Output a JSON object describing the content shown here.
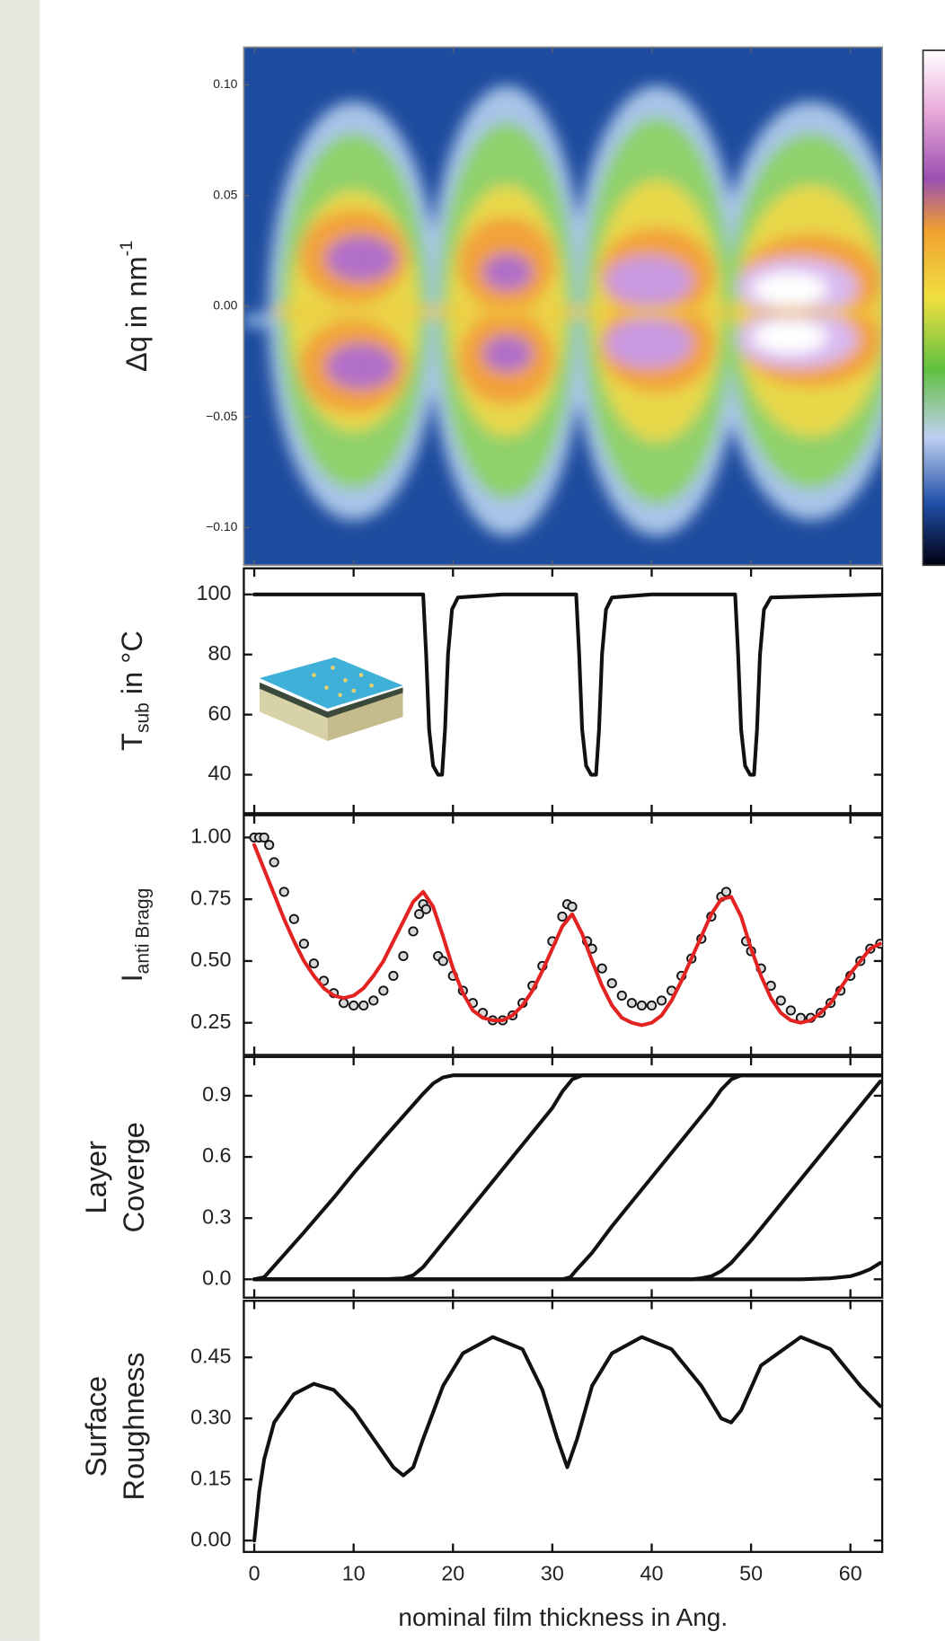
{
  "chart_data": [
    {
      "type": "heatmap",
      "ylabel": {
        "text": "Δq in nm",
        "sup": "-1"
      },
      "xlim": [
        -1.05,
        63.2
      ],
      "ylim": [
        -0.117,
        0.117
      ],
      "yticks": [
        {
          "value": 0.1,
          "label": "0.10"
        },
        {
          "value": 0.05,
          "label": "0.05"
        },
        {
          "value": 0,
          "label": "0.00"
        },
        {
          "value": -0.05,
          "label": "−0.05"
        },
        {
          "value": -0.1,
          "label": "−0.10"
        }
      ]
    },
    {
      "type": "line",
      "ylabel": {
        "text": "T",
        "sub": "sub",
        "after": " in °C"
      },
      "xlim": [
        -1.05,
        63.2
      ],
      "ylim": [
        27.2,
        108.7
      ],
      "yticks": [
        100,
        80,
        60,
        40
      ],
      "series": [
        {
          "color": "#111111",
          "x": [
            0,
            17.0,
            17.3,
            17.6,
            18.0,
            18.5,
            18.9,
            19.2,
            19.5,
            19.9,
            20.5,
            25,
            32.4,
            32.7,
            33.0,
            33.4,
            33.9,
            34.4,
            34.7,
            35.0,
            35.4,
            36.0,
            40,
            48.4,
            48.7,
            49.0,
            49.4,
            49.9,
            50.3,
            50.6,
            50.9,
            51.3,
            52.0,
            63
          ],
          "values": [
            100,
            100,
            80,
            55,
            43,
            40,
            40,
            55,
            80,
            95,
            99,
            100,
            100,
            80,
            55,
            43,
            40,
            40,
            55,
            80,
            95,
            99,
            100,
            100,
            80,
            55,
            43,
            40,
            40,
            55,
            80,
            95,
            99,
            100
          ]
        }
      ]
    },
    {
      "type": "line",
      "ylabel": {
        "text": "I",
        "sub": "anti Bragg"
      },
      "xlim": [
        -1.05,
        63.2
      ],
      "ylim": [
        0.12,
        1.09
      ],
      "yticks": [
        {
          "value": 1,
          "label": "1.00"
        },
        0.75,
        {
          "value": 0.5,
          "label": "0.50"
        },
        0.25
      ],
      "series": [
        {
          "color": "#111111",
          "marker": true,
          "line": false,
          "x": [
            0,
            0.5,
            1,
            1.5,
            2,
            3,
            4,
            5,
            6,
            7,
            8,
            9,
            10,
            11,
            12,
            13,
            14,
            15,
            16,
            16.6,
            17,
            17.3,
            18.5,
            19,
            20,
            21,
            22,
            23,
            24,
            25,
            26,
            27,
            28,
            29,
            30,
            31,
            31.5,
            32,
            33.5,
            34,
            35,
            36,
            37,
            38,
            39,
            40,
            41,
            42,
            43,
            44,
            45,
            46,
            47,
            47.5,
            49.5,
            50,
            51,
            52,
            53,
            54,
            55,
            56,
            57,
            58,
            59,
            60,
            61,
            62,
            63
          ],
          "values": [
            1.0,
            1.0,
            1.0,
            0.97,
            0.9,
            0.78,
            0.67,
            0.57,
            0.49,
            0.42,
            0.37,
            0.33,
            0.32,
            0.32,
            0.34,
            0.38,
            0.44,
            0.52,
            0.62,
            0.69,
            0.73,
            0.71,
            0.52,
            0.5,
            0.44,
            0.38,
            0.33,
            0.29,
            0.26,
            0.26,
            0.28,
            0.33,
            0.4,
            0.48,
            0.58,
            0.68,
            0.73,
            0.72,
            0.58,
            0.55,
            0.47,
            0.41,
            0.36,
            0.33,
            0.32,
            0.32,
            0.34,
            0.38,
            0.44,
            0.51,
            0.59,
            0.68,
            0.76,
            0.78,
            0.58,
            0.54,
            0.47,
            0.4,
            0.34,
            0.3,
            0.27,
            0.27,
            0.29,
            0.33,
            0.38,
            0.44,
            0.5,
            0.55,
            0.57
          ]
        },
        {
          "color": "#e32222",
          "x": [
            0,
            1,
            2,
            3,
            4,
            5,
            6,
            7,
            8,
            9,
            10,
            11,
            12,
            13,
            14,
            15,
            16,
            17,
            18,
            19,
            20,
            21,
            22,
            23,
            24,
            25,
            26,
            27,
            28,
            29,
            30,
            31,
            32,
            33,
            34,
            35,
            36,
            37,
            38,
            39,
            40,
            41,
            42,
            43,
            44,
            45,
            46,
            47,
            48,
            49,
            50,
            51,
            52,
            53,
            54,
            55,
            56,
            57,
            58,
            59,
            60,
            61,
            62,
            63
          ],
          "values": [
            0.97,
            0.87,
            0.77,
            0.67,
            0.58,
            0.5,
            0.44,
            0.39,
            0.36,
            0.35,
            0.36,
            0.39,
            0.44,
            0.5,
            0.58,
            0.66,
            0.74,
            0.78,
            0.72,
            0.6,
            0.47,
            0.37,
            0.3,
            0.27,
            0.26,
            0.26,
            0.28,
            0.32,
            0.38,
            0.46,
            0.55,
            0.64,
            0.69,
            0.61,
            0.5,
            0.4,
            0.32,
            0.27,
            0.25,
            0.24,
            0.25,
            0.28,
            0.34,
            0.42,
            0.51,
            0.6,
            0.69,
            0.75,
            0.76,
            0.68,
            0.55,
            0.44,
            0.35,
            0.29,
            0.26,
            0.25,
            0.26,
            0.29,
            0.33,
            0.39,
            0.45,
            0.5,
            0.55,
            0.57
          ]
        }
      ]
    },
    {
      "type": "line",
      "ylabel_lines": [
        "Layer",
        "Coverge"
      ],
      "xlim": [
        -1.05,
        63.2
      ],
      "ylim": [
        -0.09,
        1.09
      ],
      "yticks": [
        0.9,
        0.6,
        0.3,
        {
          "value": 0,
          "label": "0.0"
        }
      ],
      "series": [
        {
          "color": "#111111",
          "x": [
            0,
            1,
            3,
            5,
            8,
            10,
            13,
            15,
            17,
            18,
            19,
            20,
            22,
            63
          ],
          "values": [
            0,
            0.01,
            0.12,
            0.23,
            0.4,
            0.52,
            0.69,
            0.8,
            0.91,
            0.96,
            0.99,
            1,
            1,
            1
          ]
        },
        {
          "color": "#111111",
          "x": [
            0,
            13,
            15,
            16,
            17,
            18,
            20,
            23,
            25,
            28,
            30,
            31,
            32,
            33,
            63
          ],
          "values": [
            0,
            0,
            0.005,
            0.02,
            0.06,
            0.12,
            0.24,
            0.42,
            0.54,
            0.72,
            0.84,
            0.92,
            0.98,
            1,
            1
          ]
        },
        {
          "color": "#111111",
          "x": [
            0,
            31,
            31.8,
            32.5,
            34,
            36,
            38,
            40,
            42,
            44,
            46,
            47,
            48,
            49,
            63
          ],
          "values": [
            0,
            0,
            0.01,
            0.05,
            0.13,
            0.26,
            0.38,
            0.5,
            0.62,
            0.74,
            0.86,
            0.93,
            0.98,
            1,
            1
          ]
        },
        {
          "color": "#111111",
          "x": [
            0,
            44,
            45,
            46,
            47,
            48,
            50,
            52,
            54,
            56,
            58,
            60,
            62,
            63
          ],
          "values": [
            0,
            0,
            0.005,
            0.015,
            0.04,
            0.08,
            0.19,
            0.31,
            0.43,
            0.55,
            0.67,
            0.79,
            0.91,
            0.97
          ]
        },
        {
          "color": "#111111",
          "x": [
            0,
            55,
            58,
            60,
            61,
            62,
            63
          ],
          "values": [
            0,
            0,
            0.005,
            0.015,
            0.03,
            0.05,
            0.08
          ]
        }
      ]
    },
    {
      "type": "line",
      "ylabel_lines": [
        "Surface",
        "Roughness"
      ],
      "xlabel": "nominal film thickness in Ang.",
      "xlim": [
        -1.05,
        63.2
      ],
      "ylim": [
        -0.028,
        0.589
      ],
      "xticks": [
        0,
        10,
        20,
        30,
        40,
        50,
        60
      ],
      "yticks": [
        0.45,
        {
          "value": 0.3,
          "label": "0.30"
        },
        0.15,
        {
          "value": 0,
          "label": "0.00"
        }
      ],
      "series": [
        {
          "color": "#111111",
          "x": [
            0,
            0.5,
            1,
            2,
            4,
            6,
            8,
            10,
            12,
            14,
            15,
            16,
            17,
            19,
            21,
            24,
            27,
            29,
            30.5,
            31.5,
            32.5,
            34,
            36,
            39,
            42,
            45,
            47,
            48,
            49,
            51,
            55,
            58,
            61,
            63
          ],
          "values": [
            0,
            0.12,
            0.2,
            0.29,
            0.36,
            0.385,
            0.37,
            0.32,
            0.25,
            0.18,
            0.16,
            0.18,
            0.25,
            0.38,
            0.46,
            0.5,
            0.47,
            0.37,
            0.25,
            0.18,
            0.25,
            0.38,
            0.46,
            0.5,
            0.47,
            0.38,
            0.3,
            0.29,
            0.32,
            0.43,
            0.5,
            0.47,
            0.38,
            0.33
          ]
        }
      ]
    }
  ]
}
